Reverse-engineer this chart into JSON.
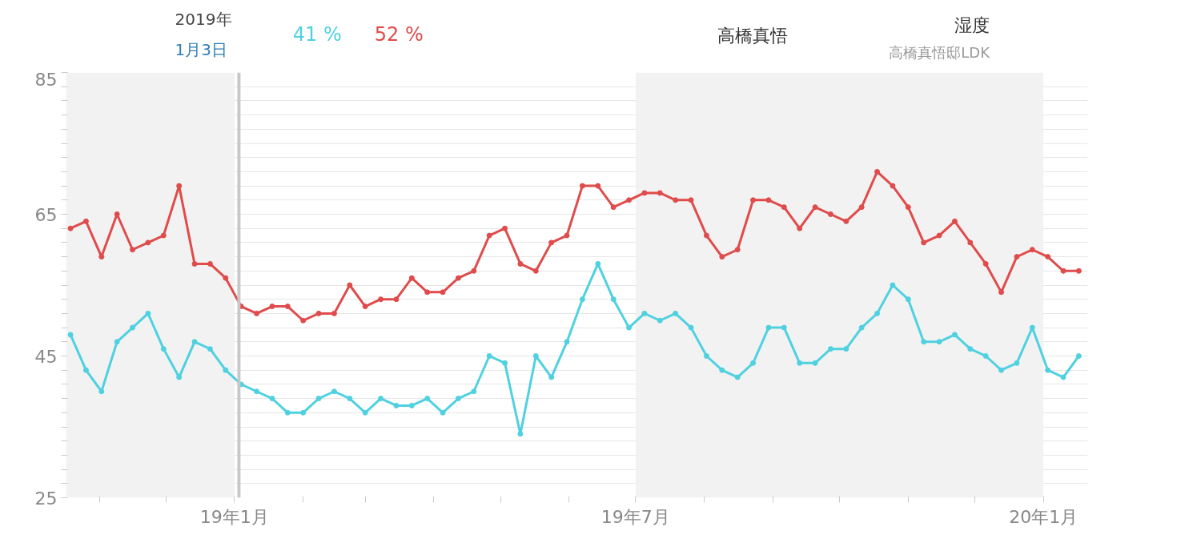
{
  "chart_data": {
    "type": "line",
    "annotations": [
      "2019年",
      "1月3日",
      "41 %",
      "52 %",
      "高橋真悟",
      "湿度",
      "高橋真悟邸LDK"
    ],
    "x": [
      "2018-10-19",
      "2018-10-26",
      "2018-11-02",
      "2018-11-09",
      "2018-11-16",
      "2018-11-23",
      "2018-11-30",
      "2018-12-07",
      "2018-12-14",
      "2018-12-21",
      "2018-12-28",
      "2019-01-04",
      "2019-01-11",
      "2019-01-18",
      "2019-01-25",
      "2019-02-01",
      "2019-02-08",
      "2019-02-15",
      "2019-02-22",
      "2019-03-01",
      "2019-03-08",
      "2019-03-15",
      "2019-03-22",
      "2019-03-29",
      "2019-04-05",
      "2019-04-12",
      "2019-04-19",
      "2019-04-26",
      "2019-05-03",
      "2019-05-10",
      "2019-05-17",
      "2019-05-24",
      "2019-05-31",
      "2019-06-07",
      "2019-06-14",
      "2019-06-21",
      "2019-06-28",
      "2019-07-05",
      "2019-07-12",
      "2019-07-19",
      "2019-07-26",
      "2019-08-02",
      "2019-08-09",
      "2019-08-16",
      "2019-08-23",
      "2019-08-30",
      "2019-09-06",
      "2019-09-13",
      "2019-09-20",
      "2019-09-27",
      "2019-10-04",
      "2019-10-11",
      "2019-10-18",
      "2019-10-25",
      "2019-11-01",
      "2019-11-08",
      "2019-11-15",
      "2019-11-22",
      "2019-11-29",
      "2019-12-06",
      "2019-12-13",
      "2019-12-20",
      "2019-12-27",
      "2020-01-03",
      "2020-01-10",
      "2020-01-17"
    ],
    "series": [
      {
        "color": "#4fd1e0",
        "values": [
          48,
          43,
          40,
          47,
          49,
          51,
          46,
          42,
          47,
          46,
          43,
          41,
          40,
          39,
          37,
          37,
          39,
          40,
          39,
          37,
          39,
          38,
          38,
          39,
          37,
          39,
          40,
          45,
          44,
          34,
          45,
          42,
          47,
          53,
          58,
          53,
          49,
          51,
          50,
          51,
          49,
          45,
          43,
          42,
          44,
          49,
          49,
          44,
          44,
          46,
          46,
          49,
          51,
          55,
          53,
          47,
          47,
          48,
          46,
          45,
          43,
          44,
          49,
          43,
          42,
          45
        ]
      },
      {
        "color": "#e04b4b",
        "values": [
          63,
          64,
          59,
          65,
          60,
          61,
          62,
          69,
          58,
          58,
          56,
          52,
          51,
          52,
          52,
          50,
          51,
          51,
          55,
          52,
          53,
          53,
          56,
          54,
          54,
          56,
          57,
          62,
          63,
          58,
          57,
          61,
          62,
          69,
          69,
          66,
          67,
          68,
          68,
          67,
          67,
          62,
          59,
          60,
          67,
          67,
          66,
          63,
          66,
          65,
          64,
          66,
          71,
          69,
          66,
          61,
          62,
          64,
          61,
          58,
          54,
          59,
          60,
          59,
          57,
          57
        ]
      }
    ],
    "xlim": [
      "2018-10-17",
      "2020-01-21"
    ],
    "xticks": [
      {
        "value": "2018-11-01",
        "label": null
      },
      {
        "value": "2018-12-01",
        "label": null
      },
      {
        "value": "2019-01-01",
        "label": "19年1月"
      },
      {
        "value": "2019-02-01",
        "label": null
      },
      {
        "value": "2019-03-01",
        "label": null
      },
      {
        "value": "2019-04-01",
        "label": null
      },
      {
        "value": "2019-05-01",
        "label": null
      },
      {
        "value": "2019-06-01",
        "label": null
      },
      {
        "value": "2019-07-01",
        "label": "19年7月"
      },
      {
        "value": "2019-08-01",
        "label": null
      },
      {
        "value": "2019-09-01",
        "label": null
      },
      {
        "value": "2019-10-01",
        "label": null
      },
      {
        "value": "2019-11-01",
        "label": null
      },
      {
        "value": "2019-12-01",
        "label": null
      },
      {
        "value": "2020-01-01",
        "label": "20年1月"
      }
    ],
    "ylim": [
      25,
      85
    ],
    "yticks": [
      25,
      {
        "value": 27,
        "label": null
      },
      {
        "value": 29,
        "label": null
      },
      {
        "value": 31,
        "label": null
      },
      {
        "value": 33,
        "label": null
      },
      {
        "value": 35,
        "label": null
      },
      {
        "value": 37,
        "label": null
      },
      {
        "value": 39,
        "label": null
      },
      {
        "value": 41,
        "label": null
      },
      {
        "value": 43,
        "label": null
      },
      45,
      {
        "value": 47,
        "label": null
      },
      {
        "value": 49,
        "label": null
      },
      {
        "value": 51,
        "label": null
      },
      {
        "value": 53,
        "label": null
      },
      {
        "value": 55,
        "label": null
      },
      {
        "value": 57,
        "label": null
      },
      {
        "value": 59,
        "label": null
      },
      {
        "value": 61,
        "label": null
      },
      {
        "value": 63,
        "label": null
      },
      65,
      {
        "value": 67,
        "label": null
      },
      {
        "value": 69,
        "label": null
      },
      {
        "value": 71,
        "label": null
      },
      {
        "value": 73,
        "label": null
      },
      {
        "value": 75,
        "label": null
      },
      {
        "value": 77,
        "label": null
      },
      {
        "value": 79,
        "label": null
      },
      {
        "value": 81,
        "label": null
      },
      {
        "value": 83,
        "label": null
      },
      85
    ],
    "ref_lines": [
      {
        "axis": "x",
        "value": "2019-01-03",
        "color": "#c8c8c8"
      }
    ],
    "bands": [
      {
        "axis": "x",
        "from": "2018-10-17",
        "to": "2019-01-01",
        "color": "#f2f2f2"
      },
      {
        "axis": "x",
        "from": "2019-07-01",
        "to": "2020-01-01",
        "color": "#f2f2f2"
      }
    ],
    "grid": "y",
    "marker": "circle",
    "line_style": "solid"
  }
}
